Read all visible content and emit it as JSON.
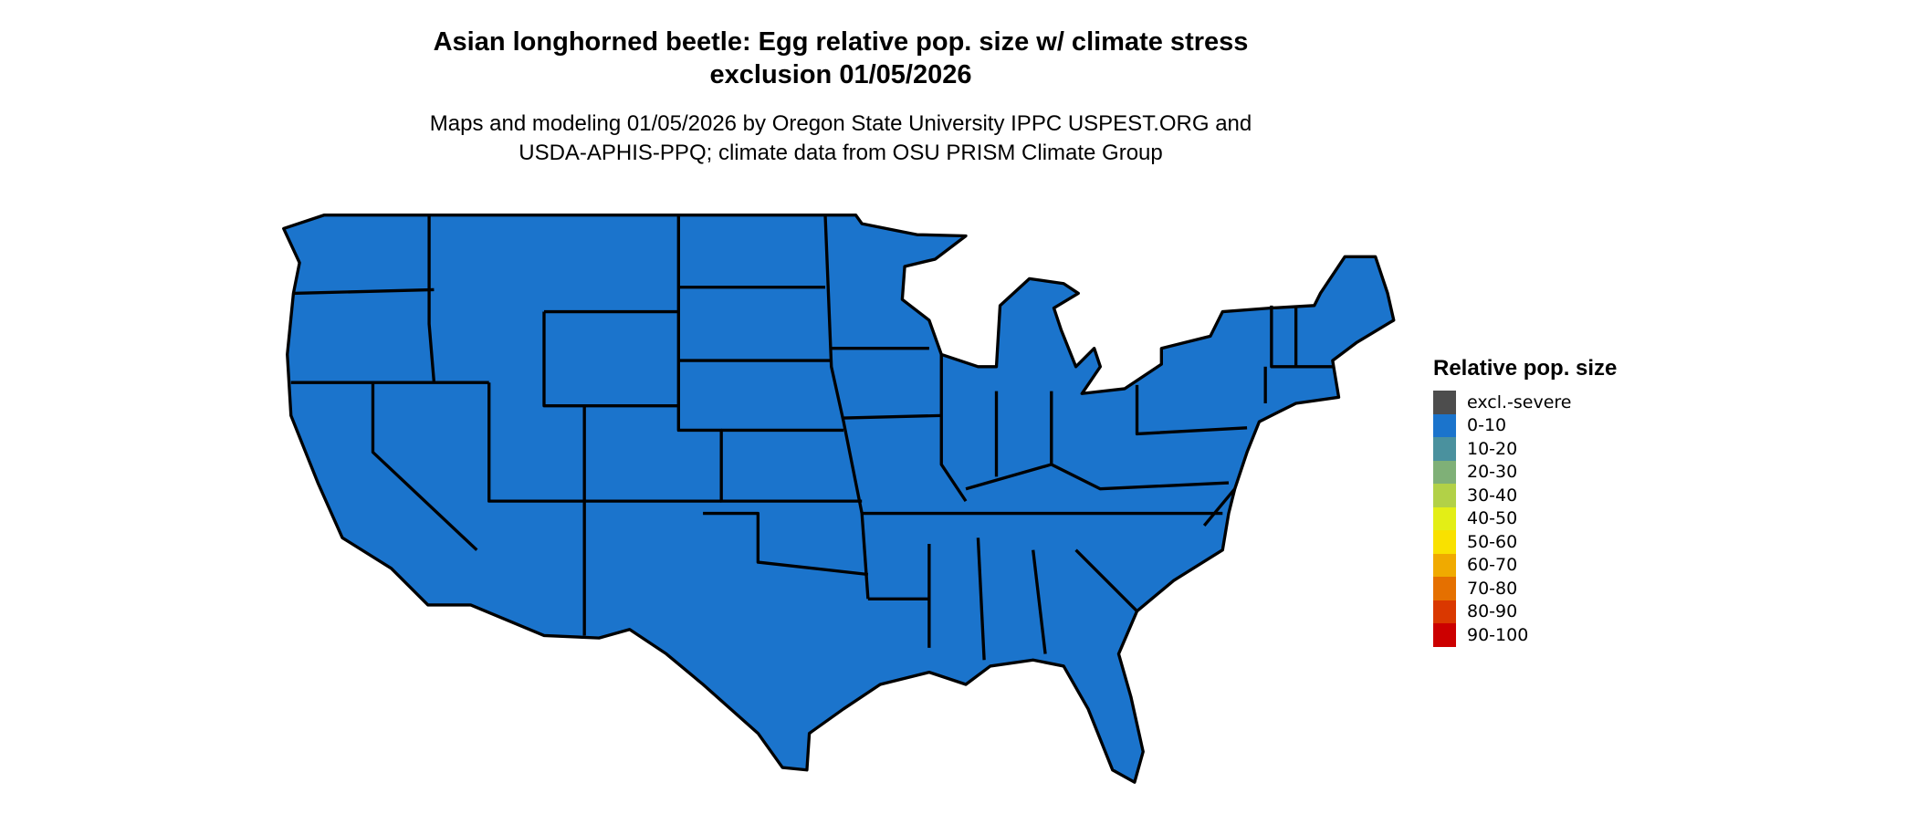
{
  "title": "Asian longhorned beetle: Egg relative pop. size w/ climate stress",
  "title_line2": "exclusion 01/05/2026",
  "subtitle": "Maps and modeling 01/05/2026 by Oregon State University IPPC USPEST.ORG and",
  "subtitle_line2": "USDA-APHIS-PPQ; climate data from OSU PRISM Climate Group",
  "map": {
    "region": "Conterminous United States",
    "fill_category": "0-10",
    "fill_color": "#1b74cc",
    "border_color": "#000000"
  },
  "legend": {
    "title": "Relative pop. size",
    "items": [
      {
        "label": "excl.-severe",
        "color": "#4d4d4d"
      },
      {
        "label": "0-10",
        "color": "#1b74cc"
      },
      {
        "label": "10-20",
        "color": "#4a919e"
      },
      {
        "label": "20-30",
        "color": "#7fb077"
      },
      {
        "label": "30-40",
        "color": "#b2d147"
      },
      {
        "label": "40-50",
        "color": "#e3ee16"
      },
      {
        "label": "50-60",
        "color": "#f9e100"
      },
      {
        "label": "60-70",
        "color": "#f0aa00"
      },
      {
        "label": "70-80",
        "color": "#e57000"
      },
      {
        "label": "80-90",
        "color": "#da3800"
      },
      {
        "label": "90-100",
        "color": "#cc0000"
      }
    ]
  }
}
